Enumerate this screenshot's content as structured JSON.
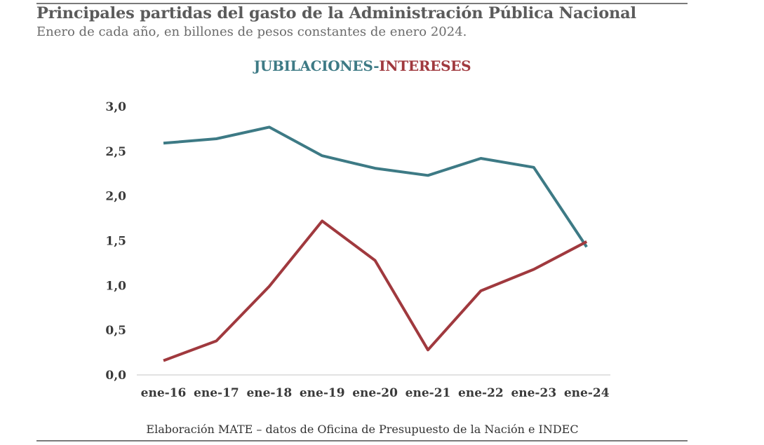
{
  "header": {
    "title": "Principales partidas del gasto de la Administración Pública Nacional",
    "subtitle": "Enero de cada año, en billones de pesos constantes de enero 2024."
  },
  "legend": {
    "series1": "JUBILACIONES",
    "separator": "-",
    "series2": "INTERESES"
  },
  "chart_data": {
    "type": "line",
    "title": "JUBILACIONES-INTERESES",
    "categories": [
      "ene-16",
      "ene-17",
      "ene-18",
      "ene-19",
      "ene-20",
      "ene-21",
      "ene-22",
      "ene-23",
      "ene-24"
    ],
    "yticks": [
      "0,0",
      "0,5",
      "1,0",
      "1,5",
      "2,0",
      "2,5",
      "3,0"
    ],
    "ylim": [
      0,
      3
    ],
    "xlabel": "",
    "ylabel": "",
    "grid": false,
    "series": [
      {
        "name": "JUBILACIONES",
        "color": "#3d7a85",
        "values": [
          2.59,
          2.64,
          2.77,
          2.45,
          2.31,
          2.23,
          2.42,
          2.32,
          1.43
        ]
      },
      {
        "name": "INTERESES",
        "color": "#a0393e",
        "values": [
          0.16,
          0.38,
          0.99,
          1.72,
          1.28,
          0.28,
          0.94,
          1.18,
          1.49
        ]
      }
    ]
  },
  "footer": {
    "source": "Elaboración MATE – datos de Oficina de Presupuesto de la Nación e INDEC"
  }
}
